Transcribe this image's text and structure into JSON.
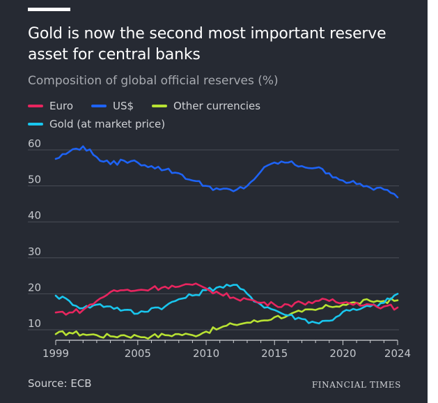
{
  "header": {
    "title": "Gold is now the second most important reserve asset for central banks",
    "subtitle": "Composition of global official reserves (%)"
  },
  "legend": [
    {
      "name": "Euro",
      "color": "#e8255f"
    },
    {
      "name": "US$",
      "color": "#1e63f5"
    },
    {
      "name": "Other currencies",
      "color": "#b8e233"
    },
    {
      "name": "Gold (at market price)",
      "color": "#19c6ee"
    }
  ],
  "chart_data": {
    "type": "line",
    "title": "Gold is now the second most important reserve asset for central banks",
    "subtitle": "Composition of global official reserves (%)",
    "xlabel": "",
    "ylabel": "",
    "xlim": [
      1999,
      2024
    ],
    "ylim": [
      10,
      60
    ],
    "xticks": [
      1999,
      2005,
      2010,
      2015,
      2020,
      2024
    ],
    "yticks": [
      10,
      20,
      30,
      40,
      50,
      60
    ],
    "grid": true,
    "x": [
      1999,
      2000,
      2001,
      2002,
      2003,
      2004,
      2005,
      2006,
      2007,
      2008,
      2009,
      2010,
      2011,
      2012,
      2013,
      2014,
      2015,
      2016,
      2017,
      2018,
      2019,
      2020,
      2021,
      2022,
      2023,
      2024
    ],
    "series": [
      {
        "name": "US$",
        "color": "#1e63f5",
        "values": [
          57.5,
          59.5,
          61,
          58,
          56,
          57,
          56.5,
          55.5,
          54.5,
          53.5,
          51.5,
          50,
          49,
          48.5,
          50,
          54,
          56.5,
          56.5,
          55.5,
          55,
          53.5,
          51.5,
          50.5,
          49.5,
          49,
          46.8
        ]
      },
      {
        "name": "Euro",
        "color": "#e8255f",
        "values": [
          14.8,
          14.8,
          15.5,
          18,
          20.5,
          21,
          21,
          21.5,
          22,
          22,
          22.5,
          21.5,
          20,
          19,
          18.5,
          17.5,
          17,
          17,
          17.5,
          18,
          18,
          17.5,
          17.5,
          17,
          16.5,
          16.2
        ]
      },
      {
        "name": "Other currencies",
        "color": "#b8e233",
        "values": [
          8.8,
          9.2,
          8.8,
          8.5,
          8.2,
          8.5,
          8.2,
          8.2,
          8.5,
          8.8,
          8.5,
          9.5,
          10.5,
          11.5,
          12,
          12.5,
          13.5,
          14,
          15,
          15.5,
          16.5,
          17,
          17.5,
          18,
          18,
          18.2
        ]
      },
      {
        "name": "Gold (at market price)",
        "color": "#19c6ee",
        "values": [
          19.5,
          18,
          16,
          17,
          16.5,
          15.5,
          14.5,
          16,
          16.5,
          18.5,
          19.5,
          21,
          22,
          22.5,
          20,
          17,
          15.5,
          14,
          13,
          12,
          12.5,
          15,
          15.5,
          16.5,
          17.5,
          20
        ]
      }
    ]
  },
  "footer": {
    "source": "Source: ECB",
    "publisher": "FINANCIAL TIMES"
  }
}
